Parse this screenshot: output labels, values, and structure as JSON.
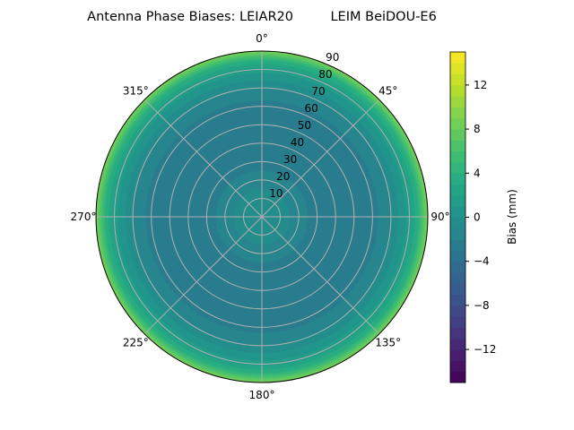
{
  "chart_data": {
    "type": "heatmap",
    "projection": "polar",
    "title": "Antenna Phase Biases: LEIAR20         LEIM BeiDOU-E6",
    "angular_tick_labels": [
      "0°",
      "45°",
      "90°",
      "135°",
      "180°",
      "225°",
      "270°",
      "315°"
    ],
    "radial_tick_labels": [
      "10",
      "20",
      "30",
      "40",
      "50",
      "60",
      "70",
      "80",
      "90"
    ],
    "radial_range": [
      0,
      90
    ],
    "zenith": [
      0,
      10,
      20,
      30,
      40,
      50,
      60,
      70,
      80,
      85,
      88,
      90
    ],
    "bias_mm": [
      0,
      -0.5,
      -1.5,
      -2.5,
      -3,
      -3,
      -2.5,
      -1,
      1.5,
      4,
      7,
      9
    ],
    "colorbar": {
      "label": "Bias (mm)",
      "range": [
        -15,
        15
      ],
      "ticks": [
        "12",
        "8",
        "4",
        "0",
        "−4",
        "−8",
        "−12"
      ],
      "tick_values": [
        12,
        8,
        4,
        0,
        -4,
        -8,
        -12
      ],
      "colormap": "viridis"
    },
    "grid": true,
    "grid_color": "#b0b0b0"
  }
}
